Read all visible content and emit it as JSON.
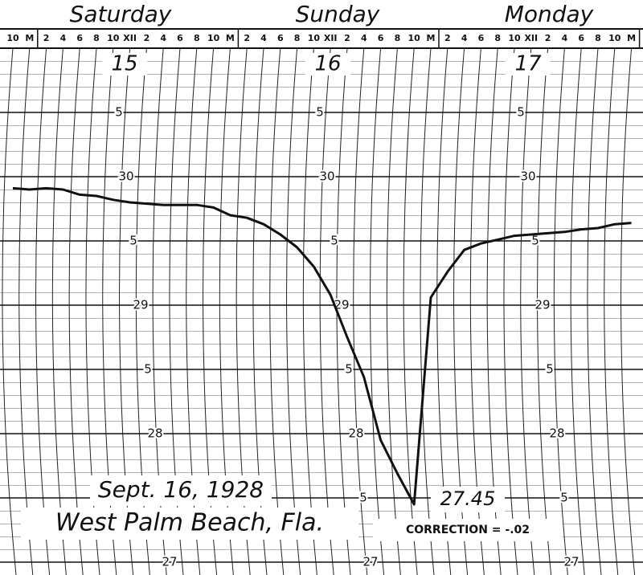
{
  "chart_data": {
    "type": "line",
    "days": [
      "Saturday",
      "Sunday",
      "Monday"
    ],
    "dates": [
      "15",
      "16",
      "17"
    ],
    "categories": [
      "10",
      "M",
      "2",
      "4",
      "6",
      "8",
      "10",
      "XII",
      "2",
      "4",
      "6",
      "8",
      "10",
      "M",
      "2",
      "4",
      "6",
      "8",
      "10",
      "XII",
      "2",
      "4",
      "6",
      "8",
      "10",
      "M",
      "2",
      "4",
      "6",
      "8",
      "10",
      "XII",
      "2",
      "4",
      "6",
      "8",
      "10",
      "M"
    ],
    "values": [
      29.91,
      29.9,
      29.91,
      29.9,
      29.86,
      29.85,
      29.82,
      29.8,
      29.79,
      29.78,
      29.78,
      29.78,
      29.76,
      29.7,
      29.68,
      29.63,
      29.55,
      29.45,
      29.3,
      29.08,
      28.75,
      28.44,
      27.95,
      27.69,
      27.45,
      29.06,
      29.26,
      29.43,
      29.48,
      29.51,
      29.54,
      29.55,
      29.56,
      29.57,
      29.59,
      29.6,
      29.63,
      29.64
    ],
    "color": "#111111",
    "ylim": [
      26.9,
      31.0
    ],
    "yticks": [
      {
        "value": 30.5,
        "label": "5"
      },
      30,
      {
        "value": 29.5,
        "label": "5"
      },
      29,
      {
        "value": 28.5,
        "label": "5"
      },
      28,
      {
        "value": 27.5,
        "label": "5"
      },
      27
    ],
    "grid": true,
    "annotations": {
      "date": "Sept. 16, 1928",
      "place": "West Palm Beach, Fla.",
      "minimum": "27.45",
      "correction": "CORRECTION = -.02"
    }
  }
}
